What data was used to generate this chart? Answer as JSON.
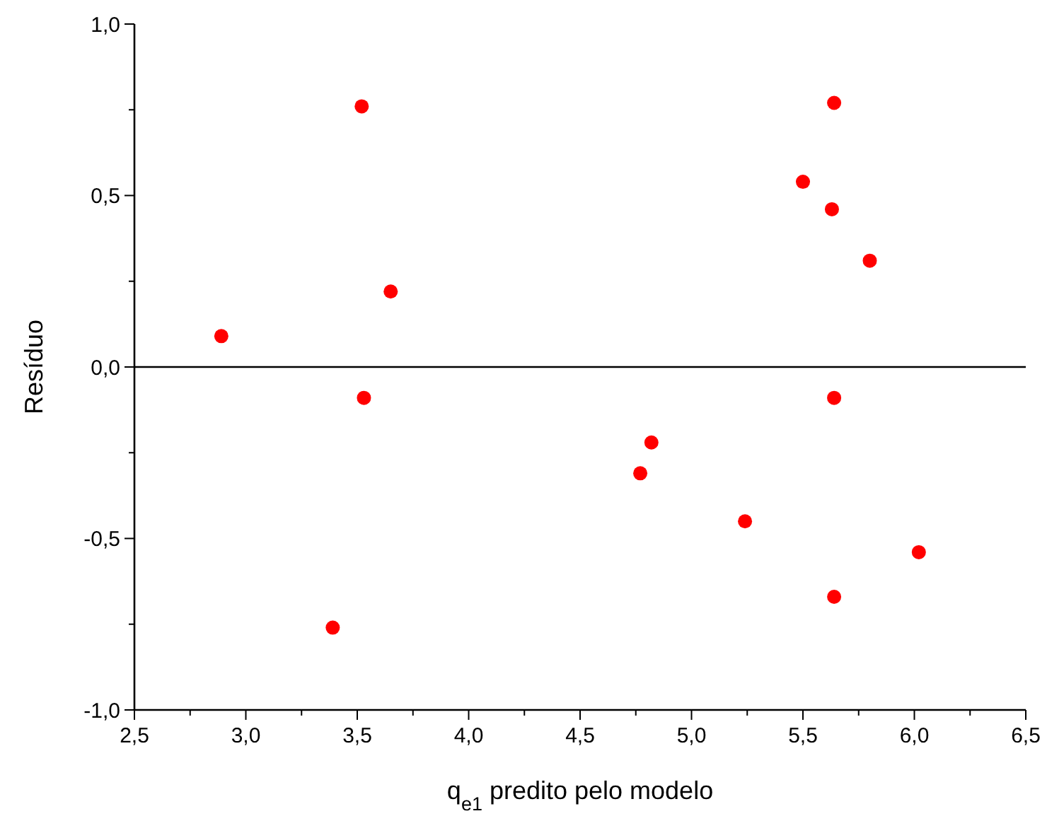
{
  "chart_data": {
    "type": "scatter",
    "xlabel": "q$_{e1}$ predito pelo modelo",
    "ylabel": "Resíduo",
    "color": "#ff0000",
    "marker": "circle",
    "grid": false,
    "x": [
      2.89,
      3.52,
      3.65,
      3.53,
      3.39,
      4.77,
      4.82,
      5.24,
      5.5,
      5.64,
      5.63,
      5.8,
      5.64,
      5.64,
      6.02
    ],
    "values": [
      0.09,
      0.76,
      0.22,
      -0.09,
      -0.76,
      -0.31,
      -0.22,
      -0.45,
      0.54,
      0.77,
      0.46,
      0.31,
      -0.09,
      -0.67,
      -0.54
    ],
    "xlim": [
      2.5,
      6.5
    ],
    "ylim": [
      -1,
      1
    ],
    "xticks": [
      {
        "value": 2.5,
        "label": "2,5"
      },
      {
        "value": 2.75,
        "label": null
      },
      {
        "value": 3,
        "label": "3,0"
      },
      {
        "value": 3.25,
        "label": null
      },
      {
        "value": 3.5,
        "label": "3,5"
      },
      {
        "value": 3.75,
        "label": null
      },
      {
        "value": 4,
        "label": "4,0"
      },
      {
        "value": 4.25,
        "label": null
      },
      {
        "value": 4.5,
        "label": "4,5"
      },
      {
        "value": 4.75,
        "label": null
      },
      {
        "value": 5,
        "label": "5,0"
      },
      {
        "value": 5.25,
        "label": null
      },
      {
        "value": 5.5,
        "label": "5,5"
      },
      {
        "value": 5.75,
        "label": null
      },
      {
        "value": 6,
        "label": "6,0"
      },
      {
        "value": 6.25,
        "label": null
      },
      {
        "value": 6.5,
        "label": "6,5"
      }
    ],
    "yticks": [
      {
        "value": -1,
        "label": "-1,0"
      },
      {
        "value": -0.75,
        "label": null
      },
      {
        "value": -0.5,
        "label": "-0,5"
      },
      {
        "value": -0.25,
        "label": null
      },
      {
        "value": 0,
        "label": "0,0"
      },
      {
        "value": 0.25,
        "label": null
      },
      {
        "value": 0.5,
        "label": "0,5"
      },
      {
        "value": 0.75,
        "label": null
      },
      {
        "value": 1,
        "label": "1,0"
      }
    ],
    "ref_lines": [
      {
        "axis": "y",
        "value": 0,
        "color": "#000000"
      }
    ]
  }
}
